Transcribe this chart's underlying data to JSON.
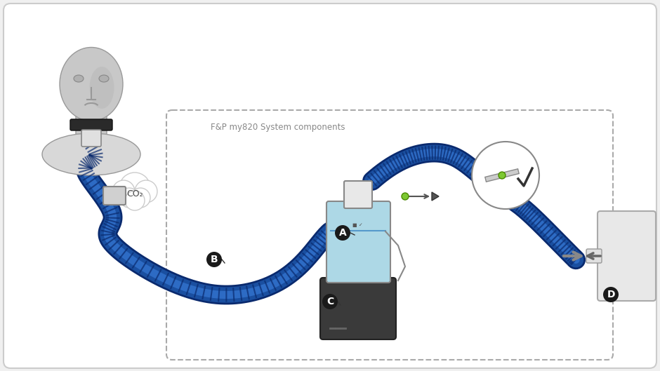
{
  "bg_color": "#f0f0f0",
  "title": "F&P my820 System components",
  "tube_color": "#1a4fa0",
  "tube_color_light": "#2255b0",
  "head_color": "#c8c8c8",
  "head_shadow": "#aaaaaa",
  "chamber_color_top": "#e8e8e8",
  "chamber_water": "#add8e6",
  "heater_color": "#3a3a3a",
  "label_A": "A",
  "label_B": "B",
  "label_C": "C",
  "label_D": "D",
  "co2_text": "CO₂",
  "dashed_box_color": "#aaaaaa",
  "arrow_color": "#555555",
  "checkmark_color": "#333333",
  "green_dot": "#7dc832",
  "connector_color": "#888888",
  "device_box_color": "#e8e8e8"
}
